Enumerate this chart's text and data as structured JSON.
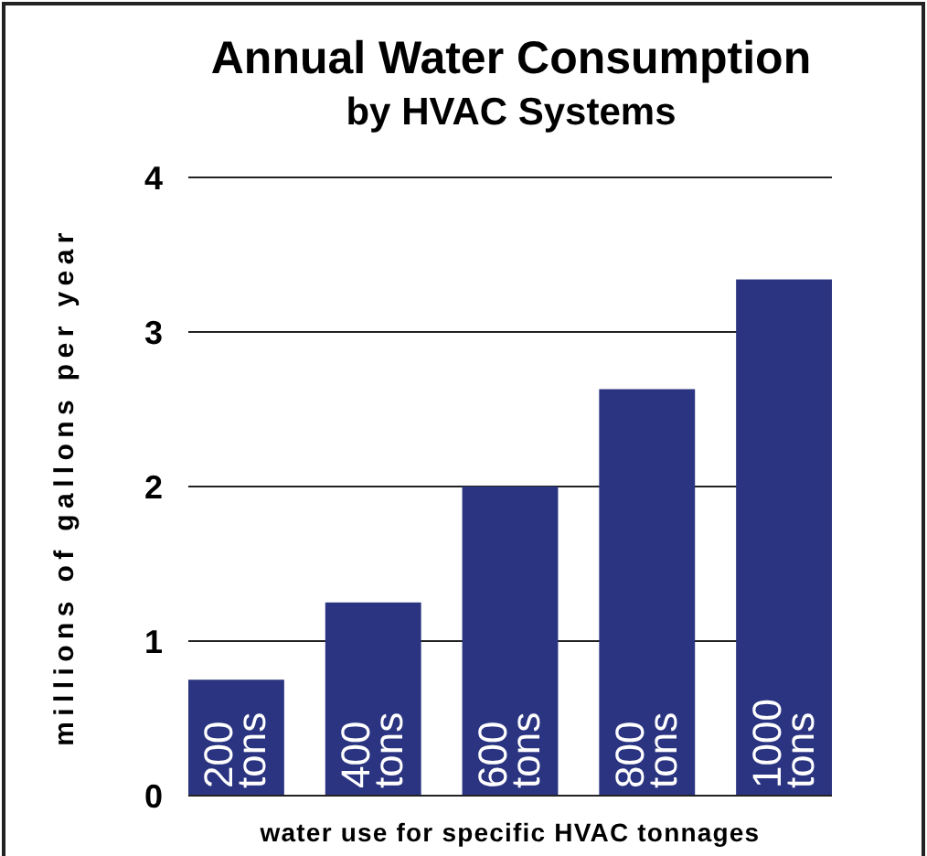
{
  "chart_data": {
    "type": "bar",
    "title": "Annual Water Consumption",
    "subtitle": "by HVAC Systems",
    "xlabel": "water use for specific HVAC tonnages",
    "ylabel": "millions of gallons per year",
    "categories": [
      "200 tons",
      "400 tons",
      "600 tons",
      "800 tons",
      "1000 tons"
    ],
    "values": [
      0.75,
      1.25,
      2,
      2.63,
      3.34
    ],
    "color": "#2b3480",
    "ylim": [
      0,
      4
    ],
    "yticks": [
      0,
      1,
      2,
      3,
      4
    ],
    "grid": "y"
  }
}
